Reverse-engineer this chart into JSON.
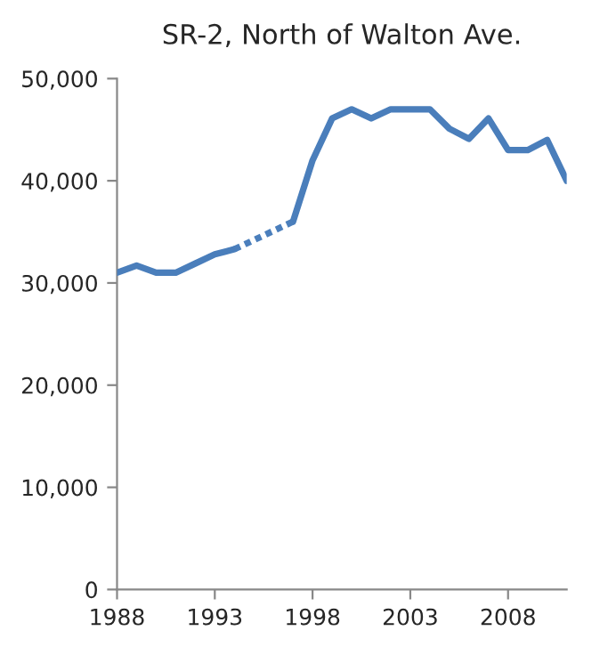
{
  "chart_data": {
    "type": "line",
    "title": "SR-2, North of Walton Ave.",
    "series": [
      {
        "color": "#4a7ebb",
        "line_style": "solid",
        "x": [
          1988,
          1989,
          1990,
          1991,
          1992,
          1993,
          1994,
          1995,
          1996,
          1997,
          1998,
          1999,
          2000,
          2001,
          2002,
          2003,
          2004,
          2005,
          2006,
          2007,
          2008,
          2009,
          2010,
          2011
        ],
        "values": [
          31000,
          31700,
          31000,
          31000,
          31900,
          32800,
          33300,
          null,
          null,
          36000,
          42000,
          46100,
          47000,
          46100,
          47000,
          47000,
          47000,
          45100,
          44100,
          46100,
          43000,
          43000,
          44000,
          40000
        ]
      },
      {
        "color": "#4b7fbc",
        "line_style": "dotted",
        "x": [
          1994,
          1997
        ],
        "values": [
          33300,
          36000
        ]
      }
    ],
    "xlim": [
      1988,
      2011
    ],
    "xticks": [
      1988,
      1993,
      1998,
      2003,
      2008
    ],
    "ylim": [
      0,
      50000
    ],
    "yticks": [
      {
        "value": 0,
        "label": "0"
      },
      {
        "value": 10000,
        "label": "10,000"
      },
      {
        "value": 20000,
        "label": "20,000"
      },
      {
        "value": 30000,
        "label": "30,000"
      },
      {
        "value": 40000,
        "label": "40,000"
      },
      {
        "value": 50000,
        "label": "50,000"
      }
    ],
    "grid": false,
    "legend": false,
    "marker": "none"
  }
}
